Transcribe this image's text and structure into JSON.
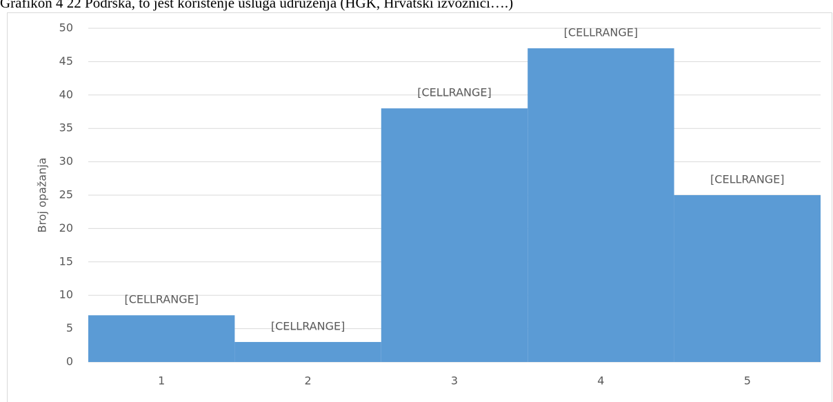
{
  "chart_data": {
    "type": "bar",
    "title": "Grafikon 4 22 Podrška, to jest korištenje usluga udruženja (HGK, Hrvatski izvoznici….)",
    "ylabel": "Broj opažanja",
    "categories": [
      "1",
      "2",
      "3",
      "4",
      "5"
    ],
    "values": [
      7,
      3,
      38,
      47,
      25
    ],
    "value_labels": [
      "[CELLRANGE]",
      "[CELLRANGE]",
      "[CELLRANGE]",
      "[CELLRANGE]",
      "[CELLRANGE]"
    ],
    "color": "#5b9bd5",
    "ylim": [
      0,
      50
    ],
    "yticks": [
      0,
      5,
      10,
      15,
      20,
      25,
      30,
      35,
      40,
      45,
      50
    ],
    "grid": true
  }
}
